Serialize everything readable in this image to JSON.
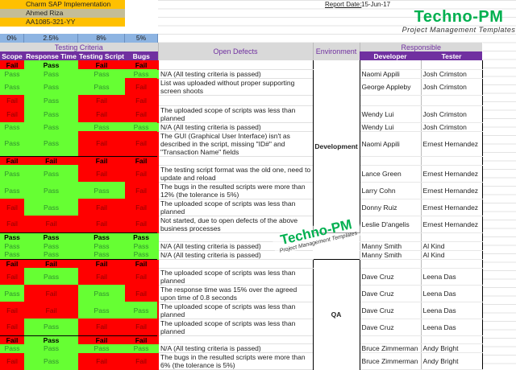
{
  "project": {
    "name": "Charm SAP Implementation",
    "manager": "Ahmed Riza",
    "code": "AA1085-321-YY"
  },
  "tolerances": [
    "0%",
    "2.5%",
    "8%",
    "5%"
  ],
  "report": {
    "label": "Report Date:",
    "date": "15-Jun-17"
  },
  "logo": {
    "title": "Techno-PM",
    "subtitle": "Project Management Templates"
  },
  "headers": {
    "testing_criteria": "Testing Criteria",
    "scope": "Scope",
    "response": "Response Time",
    "script": "Testing Script",
    "bugs": "Bugs",
    "open_defects": "Open Defects",
    "environment": "Environment",
    "responsible": "Responsible",
    "developer": "Developer",
    "tester": "Tester"
  },
  "environments": [
    "Development",
    "QA"
  ],
  "colors": {
    "pass": "#66ff33",
    "fail": "#ff0000",
    "header": "#7030a0",
    "tolerance": "#8db4e2",
    "title": "#ffc000",
    "logo": "#00b050"
  },
  "rows": [
    {
      "c": [
        "Fail",
        "Pass",
        "Fail",
        "Fail"
      ],
      "d": "",
      "dev": "",
      "tst": "",
      "sum": true
    },
    {
      "c": [
        "Pass",
        "Pass",
        "Pass",
        "Pass"
      ],
      "d": "N/A (All testing criteria is passed)",
      "dev": "Naomi Appili",
      "tst": "Josh Crimston"
    },
    {
      "c": [
        "Pass",
        "Pass",
        "Pass",
        "Fail"
      ],
      "d": "List was uploaded without proper supporting screen shoots",
      "dev": "George Appleby",
      "tst": "Josh Crimston"
    },
    {
      "c": [
        "Fail",
        "Pass",
        "Fail",
        "Fail"
      ],
      "d": "",
      "dev": "",
      "tst": ""
    },
    {
      "c": [
        "Fail",
        "Pass",
        "Fail",
        "Fail"
      ],
      "d": "The uploaded scope of scripts was less than planned",
      "dev": "Wendy Lui",
      "tst": "Josh Crimston"
    },
    {
      "c": [
        "Pass",
        "Pass",
        "Pass",
        "Pass"
      ],
      "d": "N/A (All testing criteria is passed)",
      "dev": "Wendy Lui",
      "tst": "Josh Crimston"
    },
    {
      "c": [
        "Pass",
        "Pass",
        "Fail",
        "Fail"
      ],
      "d": "The GUI (Graphical User Interface) isn't as described in the script, missing \"ID#\" and \"Transaction Name\" fields",
      "dev": "Naomi Appili",
      "tst": "Ernest Hernandez"
    },
    {
      "c": [
        "Fail",
        "Fail",
        "Fail",
        "Fail"
      ],
      "d": "",
      "dev": "",
      "tst": "",
      "sum": true
    },
    {
      "c": [
        "Pass",
        "Pass",
        "Fail",
        "Fail"
      ],
      "d": "The testing script format was the old one, need to update and reload",
      "dev": "Lance Green",
      "tst": "Ernest Hernandez"
    },
    {
      "c": [
        "Pass",
        "Pass",
        "Pass",
        "Fail"
      ],
      "d": "The bugs in the resulted scripts were more than 12% (the tolerance is 5%)",
      "dev": "Larry Cohn",
      "tst": "Ernest Hernandez"
    },
    {
      "c": [
        "Fail",
        "Pass",
        "Fail",
        "Fail"
      ],
      "d": "The uploaded scope of scripts was less than planned",
      "dev": "Donny Ruiz",
      "tst": "Ernest Hernandez"
    },
    {
      "c": [
        "Fail",
        "Fail",
        "Fail",
        "Fail"
      ],
      "d": "Not started, due to open defects of the above business processes",
      "dev": "Leslie D'angelis",
      "tst": "Ernest Hernandez"
    },
    {
      "c": [
        "Pass",
        "Pass",
        "Pass",
        "Pass"
      ],
      "d": "",
      "dev": "",
      "tst": "",
      "sum": true
    },
    {
      "c": [
        "Pass",
        "Pass",
        "Pass",
        "Pass"
      ],
      "d": "N/A (All testing criteria is passed)",
      "dev": "Manny Smith",
      "tst": "Al Kind"
    },
    {
      "c": [
        "Pass",
        "Pass",
        "Pass",
        "Pass"
      ],
      "d": "N/A (All testing criteria is passed)",
      "dev": "Manny Smith",
      "tst": "Al Kind"
    },
    {
      "c": [
        "Fail",
        "Fail",
        "Fail",
        "Fail"
      ],
      "d": "",
      "dev": "",
      "tst": "",
      "sum": true
    },
    {
      "c": [
        "Fail",
        "Pass",
        "Fail",
        "Fail"
      ],
      "d": "The uploaded scope of scripts was less than planned",
      "dev": "Dave Cruz",
      "tst": "Leena Das"
    },
    {
      "c": [
        "Pass",
        "Fail",
        "Pass",
        "Fail"
      ],
      "d": "The response time was 15% over the agreed upon time of 0.8 seconds",
      "dev": "Dave Cruz",
      "tst": "Leena Das"
    },
    {
      "c": [
        "Fail",
        "Fail",
        "Pass",
        "Pass"
      ],
      "d": "The uploaded scope of scripts was less than planned",
      "dev": "Dave Cruz",
      "tst": "Leena Das"
    },
    {
      "c": [
        "Fail",
        "Pass",
        "Fail",
        "Fail"
      ],
      "d": "The uploaded scope of scripts was less than planned",
      "dev": "Dave Cruz",
      "tst": "Leena Das"
    },
    {
      "c": [
        "Fail",
        "Pass",
        "Fail",
        "Fail"
      ],
      "d": "",
      "dev": "",
      "tst": "",
      "sum": true
    },
    {
      "c": [
        "Pass",
        "Pass",
        "Pass",
        "Pass"
      ],
      "d": "N/A (All testing criteria is passed)",
      "dev": "Bruce Zimmerman",
      "tst": "Andy Bright"
    },
    {
      "c": [
        "Fail",
        "Pass",
        "Fail",
        "Fail"
      ],
      "d": "The bugs in the resulted scripts were more than 6% (the tolerance is 5%)",
      "dev": "Bruce Zimmerman",
      "tst": "Andy Bright"
    }
  ]
}
